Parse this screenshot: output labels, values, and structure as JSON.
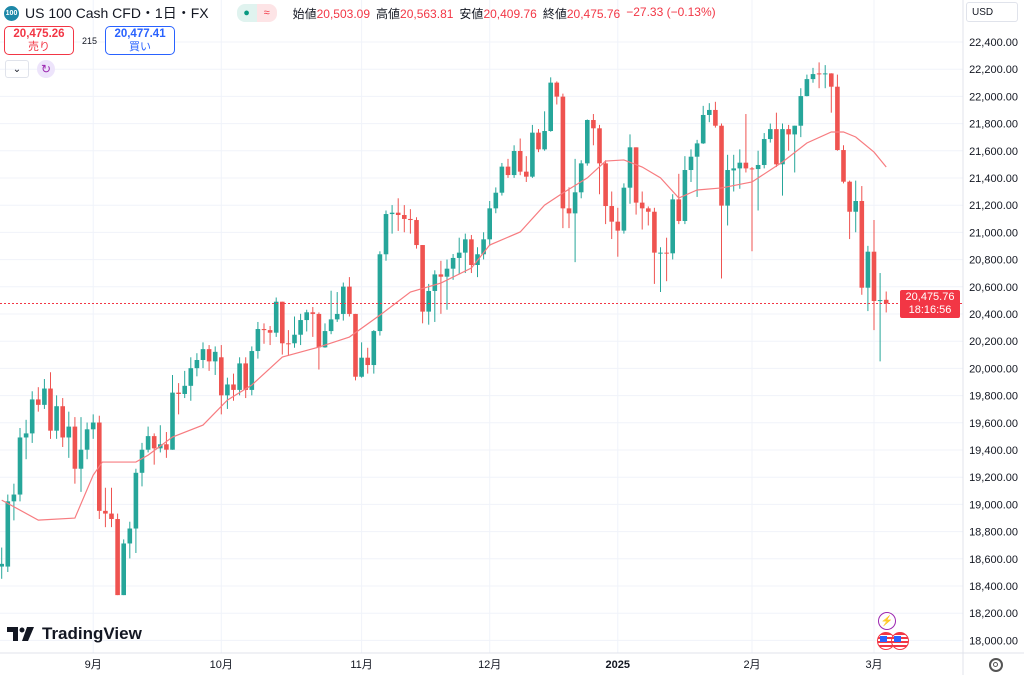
{
  "header": {
    "badge": "100",
    "title": "US 100 Cash CFD・1日・FX",
    "ohlc": [
      {
        "k": "始値",
        "v": "20,503.09"
      },
      {
        "k": "高値",
        "v": "20,563.81"
      },
      {
        "k": "安値",
        "v": "20,409.76"
      },
      {
        "k": "終値",
        "v": "20,475.76"
      }
    ],
    "change": "−27.33 (−0.13%)"
  },
  "trade": {
    "sell_price": "20,475.26",
    "sell_label": "売り",
    "spread": "215",
    "buy_price": "20,477.41",
    "buy_label": "買い"
  },
  "currency": "USD",
  "last_price": {
    "price": "20,475.76",
    "countdown": "18:16:56"
  },
  "logo": "TradingView",
  "colors": {
    "up": "#26a69a",
    "down": "#ef5350",
    "ma": "#f77c80",
    "grid": "#f0f3fa",
    "last": "#f23645"
  },
  "chart_data": {
    "type": "candlestick",
    "ylim": [
      17900,
      22560
    ],
    "yticks": [
      "22,400.00",
      "22,200.00",
      "22,000.00",
      "21,800.00",
      "21,600.00",
      "21,400.00",
      "21,200.00",
      "21,000.00",
      "20,800.00",
      "20,600.00",
      "20,400.00",
      "20,200.00",
      "20,000.00",
      "19,800.00",
      "19,600.00",
      "19,400.00",
      "19,200.00",
      "19,000.00",
      "18,800.00",
      "18,600.00",
      "18,400.00",
      "18,200.00",
      "18,000.00"
    ],
    "xticks": [
      {
        "label": "9月",
        "i": 15
      },
      {
        "label": "10月",
        "i": 36
      },
      {
        "label": "11月",
        "i": 59
      },
      {
        "label": "12月",
        "i": 80
      },
      {
        "label": "2025",
        "i": 101,
        "bold": true
      },
      {
        "label": "2月",
        "i": 123
      },
      {
        "label": "3月",
        "i": 143
      }
    ],
    "ohlc_order": [
      "open",
      "high",
      "low",
      "close"
    ],
    "candles": [
      [
        18540,
        18680,
        18450,
        18560
      ],
      [
        18540,
        19070,
        18500,
        19020
      ],
      [
        19020,
        19150,
        18880,
        19070
      ],
      [
        19070,
        19560,
        19020,
        19490
      ],
      [
        19490,
        19620,
        19330,
        19520
      ],
      [
        19520,
        19830,
        19450,
        19770
      ],
      [
        19770,
        19860,
        19680,
        19730
      ],
      [
        19730,
        19920,
        19700,
        19850
      ],
      [
        19850,
        19970,
        19480,
        19540
      ],
      [
        19540,
        19800,
        19480,
        19720
      ],
      [
        19720,
        19780,
        19420,
        19490
      ],
      [
        19490,
        19680,
        19340,
        19570
      ],
      [
        19570,
        19640,
        19150,
        19260
      ],
      [
        19260,
        19640,
        19090,
        19400
      ],
      [
        19400,
        19600,
        19330,
        19550
      ],
      [
        19550,
        19660,
        19480,
        19600
      ],
      [
        19600,
        19650,
        18890,
        18950
      ],
      [
        18950,
        19120,
        18830,
        18930
      ],
      [
        18930,
        19120,
        18830,
        18890
      ],
      [
        18890,
        18930,
        18330,
        18330
      ],
      [
        18330,
        18740,
        18330,
        18710
      ],
      [
        18710,
        18870,
        18600,
        18820
      ],
      [
        18820,
        19260,
        18640,
        19230
      ],
      [
        19230,
        19450,
        19130,
        19400
      ],
      [
        19400,
        19570,
        19380,
        19500
      ],
      [
        19500,
        19520,
        19290,
        19410
      ],
      [
        19410,
        19580,
        19380,
        19440
      ],
      [
        19440,
        19530,
        19340,
        19400
      ],
      [
        19400,
        19950,
        19400,
        19820
      ],
      [
        19820,
        19890,
        19660,
        19810
      ],
      [
        19810,
        19980,
        19780,
        19870
      ],
      [
        19870,
        20080,
        19760,
        20000
      ],
      [
        20000,
        20110,
        19940,
        20060
      ],
      [
        20060,
        20190,
        20000,
        20140
      ],
      [
        20140,
        20170,
        19980,
        20050
      ],
      [
        20050,
        20160,
        19950,
        20120
      ],
      [
        20080,
        20170,
        19660,
        19800
      ],
      [
        19800,
        19930,
        19700,
        19880
      ],
      [
        19880,
        19960,
        19760,
        19840
      ],
      [
        19840,
        20080,
        19800,
        20035
      ],
      [
        20035,
        20080,
        19780,
        19840
      ],
      [
        19840,
        20160,
        19800,
        20126
      ],
      [
        20126,
        20340,
        20070,
        20288
      ],
      [
        20288,
        20330,
        20180,
        20280
      ],
      [
        20280,
        20310,
        20170,
        20261
      ],
      [
        20261,
        20520,
        20230,
        20489
      ],
      [
        20489,
        20489,
        20100,
        20183
      ],
      [
        20183,
        20280,
        20090,
        20180
      ],
      [
        20183,
        20380,
        20150,
        20246
      ],
      [
        20246,
        20400,
        20170,
        20354
      ],
      [
        20354,
        20430,
        20270,
        20411
      ],
      [
        20411,
        20450,
        20230,
        20399
      ],
      [
        20399,
        20410,
        19990,
        20153
      ],
      [
        20153,
        20330,
        20150,
        20273
      ],
      [
        20273,
        20570,
        20250,
        20359
      ],
      [
        20359,
        20560,
        20340,
        20399
      ],
      [
        20399,
        20630,
        20350,
        20600
      ],
      [
        20600,
        20670,
        20380,
        20399
      ],
      [
        20399,
        20399,
        19910,
        19937
      ],
      [
        19937,
        20190,
        19930,
        20077
      ],
      [
        20077,
        20150,
        19960,
        20023
      ],
      [
        20023,
        20280,
        19960,
        20273
      ],
      [
        20273,
        20860,
        20240,
        20838
      ],
      [
        20838,
        21160,
        20790,
        21134
      ],
      [
        21134,
        21200,
        20990,
        21144
      ],
      [
        21144,
        21250,
        21010,
        21127
      ],
      [
        21127,
        21200,
        21000,
        21098
      ],
      [
        21098,
        21170,
        20990,
        21090
      ],
      [
        21090,
        21110,
        20880,
        20906
      ],
      [
        20906,
        20906,
        20330,
        20416
      ],
      [
        20416,
        20620,
        20320,
        20568
      ],
      [
        20568,
        20720,
        20340,
        20690
      ],
      [
        20690,
        20790,
        20400,
        20673
      ],
      [
        20673,
        20800,
        20430,
        20732
      ],
      [
        20732,
        20840,
        20650,
        20811
      ],
      [
        20811,
        20960,
        20690,
        20850
      ],
      [
        20850,
        20990,
        20700,
        20948
      ],
      [
        20948,
        20980,
        20700,
        20759
      ],
      [
        20759,
        20890,
        20670,
        20838
      ],
      [
        20838,
        21000,
        20800,
        20948
      ],
      [
        20948,
        21230,
        20900,
        21176
      ],
      [
        21176,
        21330,
        21140,
        21291
      ],
      [
        21291,
        21510,
        21270,
        21483
      ],
      [
        21483,
        21540,
        21400,
        21421
      ],
      [
        21421,
        21640,
        21400,
        21598
      ],
      [
        21598,
        21690,
        21420,
        21446
      ],
      [
        21446,
        21560,
        21370,
        21409
      ],
      [
        21409,
        21790,
        21400,
        21733
      ],
      [
        21733,
        21760,
        21590,
        21610
      ],
      [
        21610,
        21890,
        21600,
        21745
      ],
      [
        21745,
        22140,
        21740,
        22101
      ],
      [
        22101,
        22110,
        21940,
        21998
      ],
      [
        21998,
        22020,
        21030,
        21176
      ],
      [
        21176,
        21330,
        21030,
        21139
      ],
      [
        21139,
        21540,
        20780,
        21294
      ],
      [
        21294,
        21530,
        21250,
        21507
      ],
      [
        21507,
        21830,
        21490,
        21826
      ],
      [
        21826,
        21870,
        21640,
        21765
      ],
      [
        21765,
        21790,
        21280,
        21507
      ],
      [
        21507,
        21530,
        21060,
        21193
      ],
      [
        21193,
        21300,
        20950,
        21078
      ],
      [
        21078,
        21180,
        20820,
        21012
      ],
      [
        21012,
        21360,
        20990,
        21328
      ],
      [
        21328,
        21720,
        21210,
        21625
      ],
      [
        21625,
        21625,
        21130,
        21218
      ],
      [
        21218,
        21300,
        21020,
        21176
      ],
      [
        21176,
        21190,
        21050,
        21151
      ],
      [
        21151,
        21180,
        20620,
        20850
      ],
      [
        20845,
        20890,
        20560,
        20850
      ],
      [
        20850,
        20960,
        20640,
        20845
      ],
      [
        20845,
        21280,
        20800,
        21242
      ],
      [
        21242,
        21430,
        21060,
        21083
      ],
      [
        21083,
        21560,
        21060,
        21458
      ],
      [
        21458,
        21610,
        21370,
        21556
      ],
      [
        21556,
        21680,
        21260,
        21654
      ],
      [
        21654,
        21930,
        21650,
        21863
      ],
      [
        21863,
        21950,
        21810,
        21900
      ],
      [
        21900,
        21960,
        21770,
        21784
      ],
      [
        21784,
        21800,
        20660,
        21196
      ],
      [
        21196,
        21570,
        21050,
        21458
      ],
      [
        21455,
        21570,
        21300,
        21470
      ],
      [
        21470,
        21610,
        21320,
        21512
      ],
      [
        21512,
        21870,
        21440,
        21470
      ],
      [
        21470,
        21480,
        20860,
        21465
      ],
      [
        21465,
        21600,
        21160,
        21495
      ],
      [
        21495,
        21730,
        21470,
        21686
      ],
      [
        21686,
        21800,
        21660,
        21759
      ],
      [
        21759,
        21880,
        21480,
        21500
      ],
      [
        21500,
        21800,
        21270,
        21759
      ],
      [
        21759,
        21790,
        21600,
        21720
      ],
      [
        21720,
        21784,
        21440,
        21784
      ],
      [
        21784,
        22060,
        21700,
        22002
      ],
      [
        22002,
        22160,
        22000,
        22127
      ],
      [
        22127,
        22210,
        22100,
        22164
      ],
      [
        22169,
        22250,
        22060,
        22167
      ],
      [
        22164,
        22230,
        22060,
        22169
      ],
      [
        22169,
        22170,
        21880,
        22071
      ],
      [
        22071,
        22160,
        21600,
        21605
      ],
      [
        21605,
        21640,
        21360,
        21372
      ],
      [
        21372,
        21380,
        20950,
        21151
      ],
      [
        21151,
        21380,
        21000,
        21230
      ],
      [
        21230,
        21340,
        20540,
        20592
      ],
      [
        20592,
        20900,
        20420,
        20857
      ],
      [
        20857,
        21090,
        20280,
        20494
      ],
      [
        20494,
        20700,
        20050,
        20501
      ],
      [
        20503,
        20564,
        20410,
        20476
      ]
    ],
    "moving_average": [
      [
        0,
        19029
      ],
      [
        6,
        18882
      ],
      [
        12,
        18897
      ],
      [
        15,
        19213
      ],
      [
        16.5,
        19309
      ],
      [
        22,
        19309
      ],
      [
        24,
        19360
      ],
      [
        28,
        19493
      ],
      [
        33,
        19581
      ],
      [
        37,
        19765
      ],
      [
        41,
        19876
      ],
      [
        46,
        20082
      ],
      [
        52,
        20155
      ],
      [
        57,
        20229
      ],
      [
        62,
        20390
      ],
      [
        67,
        20560
      ],
      [
        72,
        20626
      ],
      [
        77,
        20737
      ],
      [
        80,
        20906
      ],
      [
        85,
        21002
      ],
      [
        89,
        21200
      ],
      [
        92,
        21289
      ],
      [
        96,
        21400
      ],
      [
        99,
        21524
      ],
      [
        102,
        21532
      ],
      [
        105,
        21480
      ],
      [
        108,
        21400
      ],
      [
        111,
        21252
      ],
      [
        114,
        21311
      ],
      [
        118,
        21326
      ],
      [
        123,
        21370
      ],
      [
        128,
        21517
      ],
      [
        132,
        21657
      ],
      [
        136,
        21738
      ],
      [
        138,
        21738
      ],
      [
        140,
        21701
      ],
      [
        143,
        21590
      ],
      [
        145,
        21480
      ]
    ],
    "last_value": 20475.76,
    "grid": true
  }
}
